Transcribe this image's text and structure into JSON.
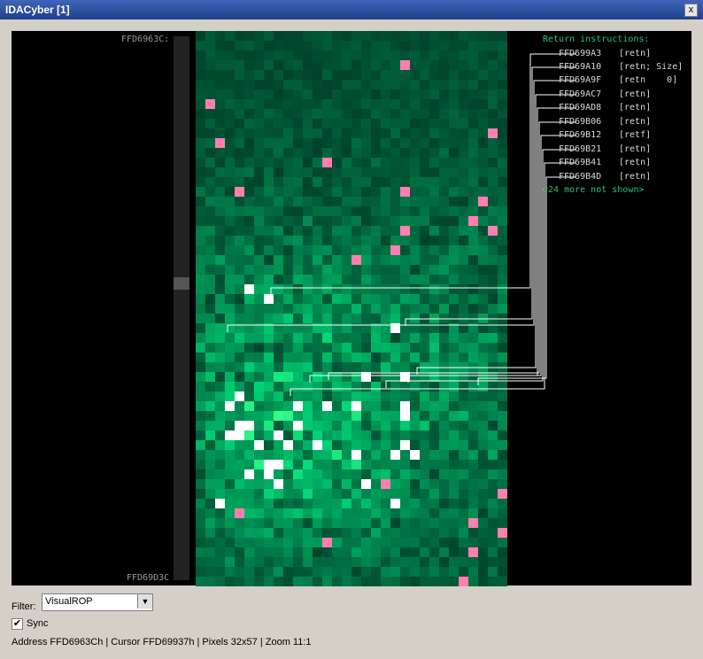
{
  "window": {
    "title": "IDACyber [1]",
    "close_label": "x"
  },
  "left": {
    "address_top": "FFD6963C:",
    "address_bottom": "FFD69D3C"
  },
  "returns": {
    "header": "Return instructions:",
    "items": [
      {
        "address": "FFD699A3",
        "instr": "[retn]"
      },
      {
        "address": "FFD69A10",
        "instr": "[retn; Size]"
      },
      {
        "address": "FFD69A9F",
        "instr": "[retn    0]"
      },
      {
        "address": "FFD69AC7",
        "instr": "[retn]"
      },
      {
        "address": "FFD69AD8",
        "instr": "[retn]"
      },
      {
        "address": "FFD69B06",
        "instr": "[retn]"
      },
      {
        "address": "FFD69B12",
        "instr": "[retf]"
      },
      {
        "address": "FFD69B21",
        "instr": "[retn]"
      },
      {
        "address": "FFD69B41",
        "instr": "[retn]"
      },
      {
        "address": "FFD69B4D",
        "instr": "[retn]"
      }
    ],
    "more": "<24 more not shown>"
  },
  "filter": {
    "label": "Filter:",
    "selected": "VisualROP"
  },
  "sync": {
    "label": "Sync",
    "checked": true
  },
  "status": "Address FFD6963Ch | Cursor FFD69937h | Pixels 32x57  | Zoom 11:1"
}
